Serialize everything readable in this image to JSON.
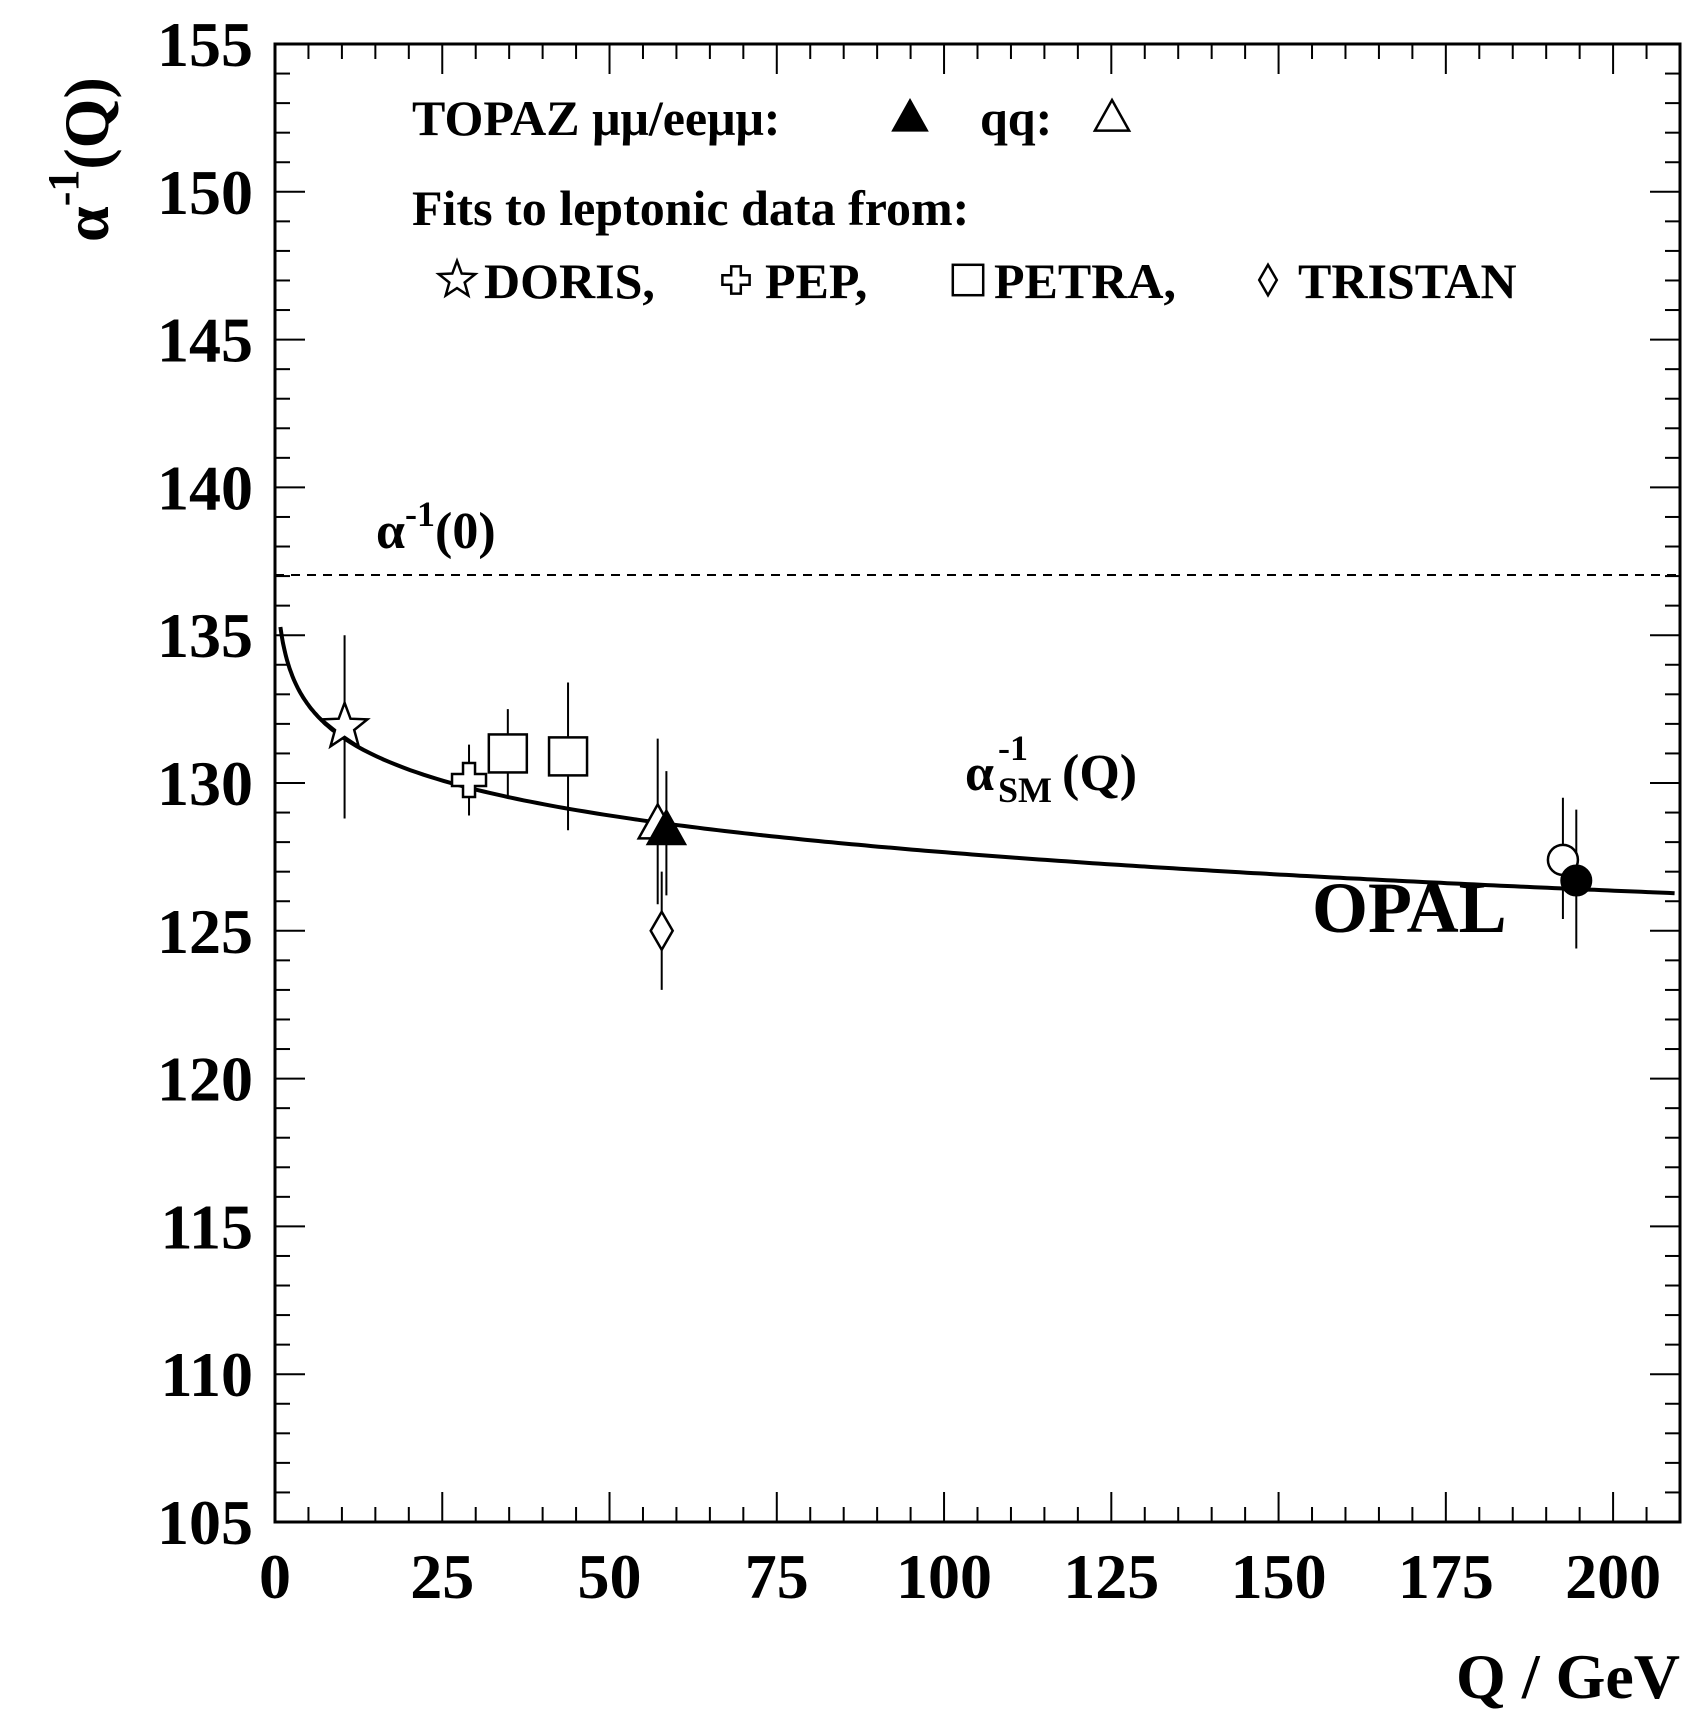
{
  "chart_data": {
    "type": "scatter",
    "xlabel": "Q / GeV",
    "ylabel": {
      "main": "α",
      "sup": "-1",
      "tail": "(Q)"
    },
    "xlim": [
      0,
      210
    ],
    "ylim": [
      105,
      155
    ],
    "x_ticks": [
      "0",
      "25",
      "50",
      "75",
      "100",
      "125",
      "150",
      "175",
      "200"
    ],
    "x_tick_values": [
      0,
      25,
      50,
      75,
      100,
      125,
      150,
      175,
      200
    ],
    "y_ticks": [
      "105",
      "110",
      "115",
      "120",
      "125",
      "130",
      "135",
      "140",
      "145",
      "150",
      "155"
    ],
    "y_tick_values": [
      105,
      110,
      115,
      120,
      125,
      130,
      135,
      140,
      145,
      150,
      155
    ],
    "legend": {
      "line1": {
        "text_a": "TOPAZ μμ/eeμμ:",
        "symbol_a": "filled-triangle",
        "text_b": "qq:",
        "symbol_b": "open-triangle"
      },
      "line2": "Fits to leptonic data from:",
      "line3": [
        {
          "symbol": "open-star",
          "label": "DORIS,"
        },
        {
          "symbol": "open-cross",
          "label": "PEP,"
        },
        {
          "symbol": "open-square",
          "label": "PETRA,"
        },
        {
          "symbol": "open-diamond",
          "label": "TRISTAN"
        }
      ]
    },
    "reference_line": {
      "y": 137.036,
      "label_main": "α",
      "label_sup": "-1",
      "label_tail": "(0)",
      "style": "dashed"
    },
    "curve": {
      "label_main": "α",
      "label_sup": "-1",
      "label_sub": "SM",
      "label_tail": "(Q)",
      "model": "running-alpha"
    },
    "series": [
      {
        "name": "DORIS",
        "marker": "open-star",
        "points": [
          {
            "x": 10.4,
            "y": 131.9,
            "ylo": 128.8,
            "yhi": 135.0
          }
        ]
      },
      {
        "name": "PEP",
        "marker": "open-cross",
        "points": [
          {
            "x": 29.0,
            "y": 130.1,
            "ylo": 128.9,
            "yhi": 131.3
          }
        ]
      },
      {
        "name": "PETRA",
        "marker": "open-square",
        "points": [
          {
            "x": 34.8,
            "y": 131.0,
            "ylo": 129.5,
            "yhi": 132.5
          },
          {
            "x": 43.8,
            "y": 130.9,
            "ylo": 128.4,
            "yhi": 133.4
          }
        ]
      },
      {
        "name": "TRISTAN",
        "marker": "open-diamond",
        "points": [
          {
            "x": 57.8,
            "y": 125.0,
            "ylo": 123.0,
            "yhi": 127.0
          }
        ]
      },
      {
        "name": "TOPAZ qq",
        "marker": "open-triangle",
        "points": [
          {
            "x": 57.2,
            "y": 128.6,
            "ylo": 125.9,
            "yhi": 131.5
          }
        ]
      },
      {
        "name": "TOPAZ μμ/eeμμ",
        "marker": "filled-triangle",
        "points": [
          {
            "x": 58.5,
            "y": 128.4,
            "ylo": 126.2,
            "yhi": 130.4
          }
        ]
      },
      {
        "name": "OPAL",
        "marker": "open-circle",
        "points": [
          {
            "x": 192.5,
            "y": 127.4,
            "ylo": 125.4,
            "yhi": 129.5
          }
        ]
      },
      {
        "name": "OPAL",
        "marker": "filled-circle",
        "points": [
          {
            "x": 194.5,
            "y": 126.7,
            "ylo": 124.4,
            "yhi": 129.1
          }
        ]
      }
    ],
    "annotations": [
      {
        "text": "OPAL"
      }
    ],
    "grid": false
  }
}
